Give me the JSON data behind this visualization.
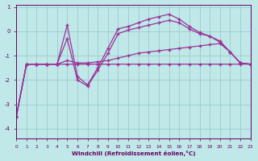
{
  "xlabel": "Windchill (Refroidissement éolien,°C)",
  "bg_color": "#c0e8e8",
  "line_color": "#993399",
  "grid_color": "#99cccc",
  "x": [
    0,
    1,
    2,
    3,
    4,
    5,
    6,
    7,
    8,
    9,
    10,
    11,
    12,
    13,
    14,
    15,
    16,
    17,
    18,
    19,
    20,
    21,
    22,
    23
  ],
  "line1": [
    -3.5,
    -1.35,
    -1.35,
    -1.35,
    -1.35,
    -1.35,
    -1.35,
    -1.35,
    -1.35,
    -1.35,
    -1.35,
    -1.35,
    -1.35,
    -1.35,
    -1.35,
    -1.35,
    -1.35,
    -1.35,
    -1.35,
    -1.35,
    -1.35,
    -1.35,
    -1.35,
    -1.35
  ],
  "line2": [
    -3.5,
    -1.35,
    -1.35,
    -1.35,
    -1.35,
    -1.2,
    -1.3,
    -1.3,
    -1.25,
    -1.2,
    -1.1,
    -1.0,
    -0.9,
    -0.85,
    -0.8,
    -0.75,
    -0.7,
    -0.65,
    -0.6,
    -0.55,
    -0.5,
    -0.85,
    -1.3,
    -1.35
  ],
  "line3": [
    -3.5,
    -1.35,
    -1.35,
    -1.35,
    -1.35,
    -0.3,
    -2.0,
    -2.25,
    -1.6,
    -0.9,
    -0.1,
    0.05,
    0.15,
    0.25,
    0.35,
    0.45,
    0.35,
    0.1,
    -0.1,
    -0.2,
    -0.4,
    -0.85,
    -1.3,
    -1.35
  ],
  "line4": [
    -3.5,
    -1.35,
    -1.35,
    -1.35,
    -1.35,
    0.25,
    -1.85,
    -2.2,
    -1.5,
    -0.7,
    0.1,
    0.2,
    0.35,
    0.5,
    0.6,
    0.7,
    0.5,
    0.2,
    -0.05,
    -0.2,
    -0.45,
    -0.85,
    -1.3,
    -1.35
  ],
  "ylim": [
    -4.4,
    1.1
  ],
  "yticks": [
    -4,
    -3,
    -2,
    -1,
    0,
    1
  ],
  "xlim": [
    0,
    23
  ],
  "xtick_labels": [
    "0",
    "1",
    "2",
    "3",
    "4",
    "5",
    "6",
    "7",
    "8",
    "9",
    "10",
    "11",
    "12",
    "13",
    "14",
    "15",
    "16",
    "17",
    "18",
    "19",
    "20",
    "21",
    "22",
    "23"
  ]
}
